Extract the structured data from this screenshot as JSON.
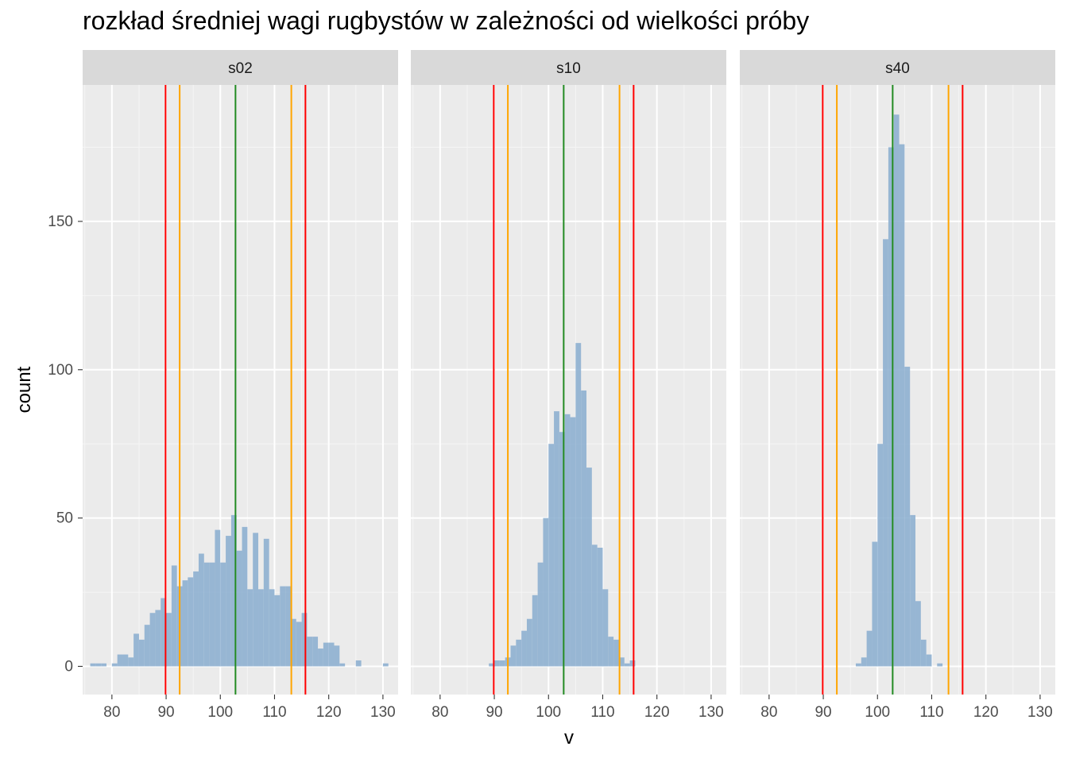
{
  "title": "rozkład średniej wagi rugbystów w zależności od wielkości próby",
  "chart_data": {
    "type": "bar",
    "subtype": "faceted histogram",
    "title": "rozkład średniej wagi rugbystów w zależności od wielkości próby",
    "xlabel": "v",
    "ylabel": "count",
    "xlim": [
      74.6,
      132.8
    ],
    "ylim": [
      -9.5,
      196
    ],
    "x_ticks": [
      80,
      90,
      100,
      110,
      120,
      130
    ],
    "y_ticks": [
      0,
      50,
      100,
      150
    ],
    "grid": true,
    "bin_width": 1,
    "bar_color": "#8EB0D0",
    "panel_background": "#EBEBEB",
    "strip_background": "#D9D9D9",
    "vlines": [
      {
        "x": 89.9,
        "color": "#FF0000"
      },
      {
        "x": 92.5,
        "color": "#FFA500"
      },
      {
        "x": 102.8,
        "color": "#228B22"
      },
      {
        "x": 113.1,
        "color": "#FFA500"
      },
      {
        "x": 115.7,
        "color": "#FF0000"
      }
    ],
    "facets": [
      {
        "name": "s02",
        "bins": [
          {
            "x": 76.5,
            "count": 1
          },
          {
            "x": 77.5,
            "count": 1
          },
          {
            "x": 78.5,
            "count": 1
          },
          {
            "x": 80.5,
            "count": 1
          },
          {
            "x": 81.5,
            "count": 4
          },
          {
            "x": 82.5,
            "count": 4
          },
          {
            "x": 83.5,
            "count": 3
          },
          {
            "x": 84.5,
            "count": 11
          },
          {
            "x": 85.5,
            "count": 9
          },
          {
            "x": 86.5,
            "count": 14
          },
          {
            "x": 87.5,
            "count": 18
          },
          {
            "x": 88.5,
            "count": 19
          },
          {
            "x": 89.5,
            "count": 23
          },
          {
            "x": 90.5,
            "count": 18
          },
          {
            "x": 91.5,
            "count": 34
          },
          {
            "x": 92.5,
            "count": 27
          },
          {
            "x": 93.5,
            "count": 29
          },
          {
            "x": 94.5,
            "count": 30
          },
          {
            "x": 95.5,
            "count": 32
          },
          {
            "x": 96.5,
            "count": 38
          },
          {
            "x": 97.5,
            "count": 35
          },
          {
            "x": 98.5,
            "count": 35
          },
          {
            "x": 99.5,
            "count": 46
          },
          {
            "x": 100.5,
            "count": 35
          },
          {
            "x": 101.5,
            "count": 44
          },
          {
            "x": 102.5,
            "count": 51
          },
          {
            "x": 103.5,
            "count": 39
          },
          {
            "x": 104.5,
            "count": 47
          },
          {
            "x": 105.5,
            "count": 26
          },
          {
            "x": 106.5,
            "count": 45
          },
          {
            "x": 107.5,
            "count": 26
          },
          {
            "x": 108.5,
            "count": 43
          },
          {
            "x": 109.5,
            "count": 26
          },
          {
            "x": 110.5,
            "count": 24
          },
          {
            "x": 111.5,
            "count": 27
          },
          {
            "x": 112.5,
            "count": 27
          },
          {
            "x": 113.5,
            "count": 16
          },
          {
            "x": 114.5,
            "count": 15
          },
          {
            "x": 115.5,
            "count": 18
          },
          {
            "x": 116.5,
            "count": 10
          },
          {
            "x": 117.5,
            "count": 10
          },
          {
            "x": 118.5,
            "count": 6
          },
          {
            "x": 119.5,
            "count": 8
          },
          {
            "x": 120.5,
            "count": 8
          },
          {
            "x": 121.5,
            "count": 7
          },
          {
            "x": 122.5,
            "count": 1
          },
          {
            "x": 125.5,
            "count": 2
          },
          {
            "x": 130.5,
            "count": 1
          }
        ]
      },
      {
        "name": "s10",
        "bins": [
          {
            "x": 89.5,
            "count": 1
          },
          {
            "x": 90.5,
            "count": 2
          },
          {
            "x": 91.5,
            "count": 2
          },
          {
            "x": 92.5,
            "count": 3
          },
          {
            "x": 93.5,
            "count": 7
          },
          {
            "x": 94.5,
            "count": 9
          },
          {
            "x": 95.5,
            "count": 12
          },
          {
            "x": 96.5,
            "count": 16
          },
          {
            "x": 97.5,
            "count": 24
          },
          {
            "x": 98.5,
            "count": 35
          },
          {
            "x": 99.5,
            "count": 50
          },
          {
            "x": 100.5,
            "count": 75
          },
          {
            "x": 101.5,
            "count": 86
          },
          {
            "x": 102.5,
            "count": 79
          },
          {
            "x": 103.5,
            "count": 85
          },
          {
            "x": 104.5,
            "count": 84
          },
          {
            "x": 105.5,
            "count": 109
          },
          {
            "x": 106.5,
            "count": 93
          },
          {
            "x": 107.5,
            "count": 67
          },
          {
            "x": 108.5,
            "count": 41
          },
          {
            "x": 109.5,
            "count": 40
          },
          {
            "x": 110.5,
            "count": 26
          },
          {
            "x": 111.5,
            "count": 10
          },
          {
            "x": 112.5,
            "count": 9
          },
          {
            "x": 113.5,
            "count": 3
          },
          {
            "x": 114.5,
            "count": 1
          },
          {
            "x": 115.5,
            "count": 2
          }
        ]
      },
      {
        "name": "s40",
        "bins": [
          {
            "x": 96.5,
            "count": 1
          },
          {
            "x": 97.5,
            "count": 3
          },
          {
            "x": 98.5,
            "count": 12
          },
          {
            "x": 99.5,
            "count": 42
          },
          {
            "x": 100.5,
            "count": 75
          },
          {
            "x": 101.5,
            "count": 144
          },
          {
            "x": 102.5,
            "count": 175
          },
          {
            "x": 103.5,
            "count": 186
          },
          {
            "x": 104.5,
            "count": 176
          },
          {
            "x": 105.5,
            "count": 101
          },
          {
            "x": 106.5,
            "count": 51
          },
          {
            "x": 107.5,
            "count": 22
          },
          {
            "x": 108.5,
            "count": 9
          },
          {
            "x": 109.5,
            "count": 4
          },
          {
            "x": 111.5,
            "count": 1
          }
        ]
      }
    ]
  }
}
